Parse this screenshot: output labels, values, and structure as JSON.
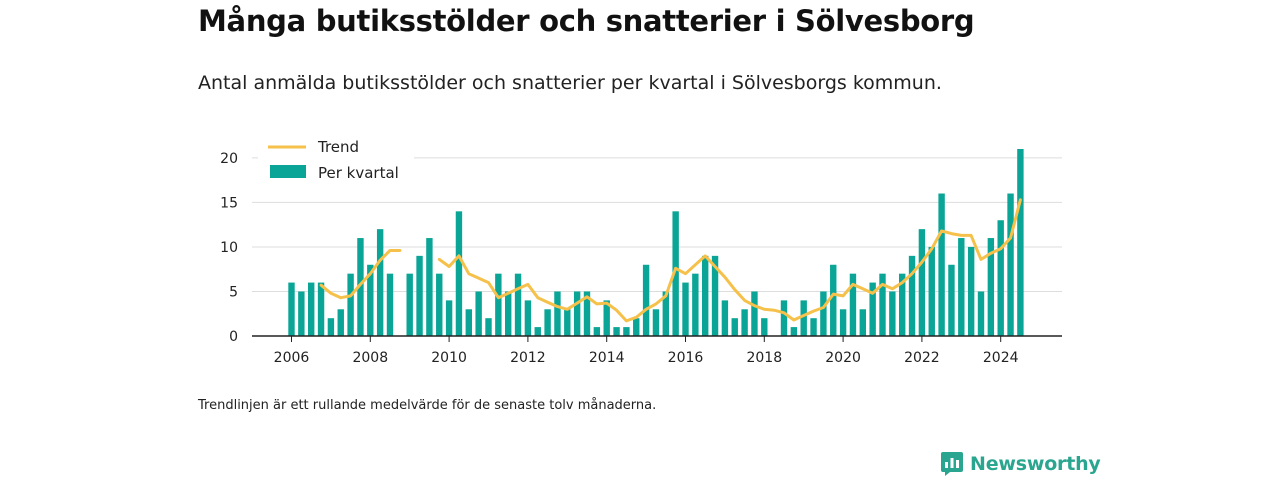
{
  "header": {
    "title": "Många butiksstölder och snatterier i Sölvesborg",
    "subtitle": "Antal anmälda butiksstölder och snatterier per kvartal i Sölvesborgs kommun."
  },
  "footer": {
    "note": "Trendlinjen är ett rullande medelvärde för de senaste tolv månaderna.",
    "brand": "Newsworthy",
    "brand_icon": "bar-chart-logo-icon"
  },
  "colors": {
    "bar": "#0aa596",
    "trend": "#f6c14b",
    "grid": "#dddddd",
    "axis": "#222222",
    "brand": "#2aa58f"
  },
  "chart_data": {
    "type": "bar",
    "x_unit": "year (quarters as decimal years)",
    "x_ticks": [
      2006,
      2008,
      2010,
      2012,
      2014,
      2016,
      2018,
      2020,
      2022,
      2024
    ],
    "xlim": [
      2005.5,
      2025.4
    ],
    "ylim": [
      0,
      21
    ],
    "y_ticks": [
      0,
      5,
      10,
      15,
      20
    ],
    "grid": true,
    "legend_placement": "top-left",
    "series": [
      {
        "name": "Per kvartal",
        "type": "bar",
        "data": [
          {
            "x": 2006.0,
            "y": 6
          },
          {
            "x": 2006.25,
            "y": 5
          },
          {
            "x": 2006.5,
            "y": 6
          },
          {
            "x": 2006.75,
            "y": 6
          },
          {
            "x": 2007.0,
            "y": 2
          },
          {
            "x": 2007.25,
            "y": 3
          },
          {
            "x": 2007.5,
            "y": 7
          },
          {
            "x": 2007.75,
            "y": 11
          },
          {
            "x": 2008.0,
            "y": 8
          },
          {
            "x": 2008.25,
            "y": 12
          },
          {
            "x": 2008.5,
            "y": 7
          },
          {
            "x": 2009.0,
            "y": 7
          },
          {
            "x": 2009.25,
            "y": 9
          },
          {
            "x": 2009.5,
            "y": 11
          },
          {
            "x": 2009.75,
            "y": 7
          },
          {
            "x": 2010.0,
            "y": 4
          },
          {
            "x": 2010.25,
            "y": 14
          },
          {
            "x": 2010.5,
            "y": 3
          },
          {
            "x": 2010.75,
            "y": 5
          },
          {
            "x": 2011.0,
            "y": 2
          },
          {
            "x": 2011.25,
            "y": 7
          },
          {
            "x": 2011.5,
            "y": 5
          },
          {
            "x": 2011.75,
            "y": 7
          },
          {
            "x": 2012.0,
            "y": 4
          },
          {
            "x": 2012.25,
            "y": 1
          },
          {
            "x": 2012.5,
            "y": 3
          },
          {
            "x": 2012.75,
            "y": 5
          },
          {
            "x": 2013.0,
            "y": 3
          },
          {
            "x": 2013.25,
            "y": 5
          },
          {
            "x": 2013.5,
            "y": 5
          },
          {
            "x": 2013.75,
            "y": 1
          },
          {
            "x": 2014.0,
            "y": 4
          },
          {
            "x": 2014.25,
            "y": 1
          },
          {
            "x": 2014.5,
            "y": 1
          },
          {
            "x": 2014.75,
            "y": 2
          },
          {
            "x": 2015.0,
            "y": 8
          },
          {
            "x": 2015.25,
            "y": 3
          },
          {
            "x": 2015.5,
            "y": 5
          },
          {
            "x": 2015.75,
            "y": 14
          },
          {
            "x": 2016.0,
            "y": 6
          },
          {
            "x": 2016.25,
            "y": 7
          },
          {
            "x": 2016.5,
            "y": 9
          },
          {
            "x": 2016.75,
            "y": 9
          },
          {
            "x": 2017.0,
            "y": 4
          },
          {
            "x": 2017.25,
            "y": 2
          },
          {
            "x": 2017.5,
            "y": 3
          },
          {
            "x": 2017.75,
            "y": 5
          },
          {
            "x": 2018.0,
            "y": 2
          },
          {
            "x": 2018.5,
            "y": 4
          },
          {
            "x": 2018.75,
            "y": 1
          },
          {
            "x": 2019.0,
            "y": 4
          },
          {
            "x": 2019.25,
            "y": 2
          },
          {
            "x": 2019.5,
            "y": 5
          },
          {
            "x": 2019.75,
            "y": 8
          },
          {
            "x": 2020.0,
            "y": 3
          },
          {
            "x": 2020.25,
            "y": 7
          },
          {
            "x": 2020.5,
            "y": 3
          },
          {
            "x": 2020.75,
            "y": 6
          },
          {
            "x": 2021.0,
            "y": 7
          },
          {
            "x": 2021.25,
            "y": 5
          },
          {
            "x": 2021.5,
            "y": 7
          },
          {
            "x": 2021.75,
            "y": 9
          },
          {
            "x": 2022.0,
            "y": 12
          },
          {
            "x": 2022.25,
            "y": 10
          },
          {
            "x": 2022.5,
            "y": 16
          },
          {
            "x": 2022.75,
            "y": 8
          },
          {
            "x": 2023.0,
            "y": 11
          },
          {
            "x": 2023.25,
            "y": 10
          },
          {
            "x": 2023.5,
            "y": 5
          },
          {
            "x": 2023.75,
            "y": 11
          },
          {
            "x": 2024.0,
            "y": 13
          },
          {
            "x": 2024.25,
            "y": 16
          },
          {
            "x": 2024.5,
            "y": 21
          }
        ]
      },
      {
        "name": "Trend",
        "type": "line",
        "segments": [
          [
            {
              "x": 2006.75,
              "y": 5.7
            },
            {
              "x": 2007.0,
              "y": 4.8
            },
            {
              "x": 2007.25,
              "y": 4.3
            },
            {
              "x": 2007.5,
              "y": 4.5
            },
            {
              "x": 2007.75,
              "y": 5.8
            },
            {
              "x": 2008.0,
              "y": 7.0
            },
            {
              "x": 2008.25,
              "y": 8.5
            },
            {
              "x": 2008.5,
              "y": 9.6
            },
            {
              "x": 2008.75,
              "y": 9.6
            }
          ],
          [
            {
              "x": 2009.75,
              "y": 8.6
            },
            {
              "x": 2010.0,
              "y": 7.8
            },
            {
              "x": 2010.25,
              "y": 9.0
            },
            {
              "x": 2010.5,
              "y": 7.0
            },
            {
              "x": 2010.75,
              "y": 6.5
            },
            {
              "x": 2011.0,
              "y": 6.0
            },
            {
              "x": 2011.25,
              "y": 4.3
            },
            {
              "x": 2011.5,
              "y": 4.8
            },
            {
              "x": 2011.75,
              "y": 5.3
            },
            {
              "x": 2012.0,
              "y": 5.8
            },
            {
              "x": 2012.25,
              "y": 4.3
            },
            {
              "x": 2012.5,
              "y": 3.8
            },
            {
              "x": 2012.75,
              "y": 3.3
            },
            {
              "x": 2013.0,
              "y": 3.0
            },
            {
              "x": 2013.25,
              "y": 3.7
            },
            {
              "x": 2013.5,
              "y": 4.4
            },
            {
              "x": 2013.75,
              "y": 3.6
            },
            {
              "x": 2014.0,
              "y": 3.7
            },
            {
              "x": 2014.25,
              "y": 2.9
            },
            {
              "x": 2014.5,
              "y": 1.7
            },
            {
              "x": 2014.75,
              "y": 2.1
            },
            {
              "x": 2015.0,
              "y": 3.0
            },
            {
              "x": 2015.25,
              "y": 3.6
            },
            {
              "x": 2015.5,
              "y": 4.5
            },
            {
              "x": 2015.75,
              "y": 7.6
            },
            {
              "x": 2016.0,
              "y": 7.0
            },
            {
              "x": 2016.25,
              "y": 8.0
            },
            {
              "x": 2016.5,
              "y": 9.0
            },
            {
              "x": 2016.75,
              "y": 7.8
            },
            {
              "x": 2017.0,
              "y": 6.6
            },
            {
              "x": 2017.25,
              "y": 5.2
            },
            {
              "x": 2017.5,
              "y": 4.0
            },
            {
              "x": 2017.75,
              "y": 3.4
            },
            {
              "x": 2018.0,
              "y": 3.0
            },
            {
              "x": 2018.25,
              "y": 2.9
            },
            {
              "x": 2018.5,
              "y": 2.6
            },
            {
              "x": 2018.75,
              "y": 1.8
            },
            {
              "x": 2019.0,
              "y": 2.3
            },
            {
              "x": 2019.25,
              "y": 2.8
            },
            {
              "x": 2019.5,
              "y": 3.2
            },
            {
              "x": 2019.75,
              "y": 4.7
            },
            {
              "x": 2020.0,
              "y": 4.5
            },
            {
              "x": 2020.25,
              "y": 5.8
            },
            {
              "x": 2020.5,
              "y": 5.3
            },
            {
              "x": 2020.75,
              "y": 4.8
            },
            {
              "x": 2021.0,
              "y": 5.8
            },
            {
              "x": 2021.25,
              "y": 5.3
            },
            {
              "x": 2021.5,
              "y": 6.0
            },
            {
              "x": 2021.75,
              "y": 7.0
            },
            {
              "x": 2022.0,
              "y": 8.3
            },
            {
              "x": 2022.25,
              "y": 9.8
            },
            {
              "x": 2022.5,
              "y": 11.8
            },
            {
              "x": 2022.75,
              "y": 11.5
            },
            {
              "x": 2023.0,
              "y": 11.3
            },
            {
              "x": 2023.25,
              "y": 11.3
            },
            {
              "x": 2023.5,
              "y": 8.6
            },
            {
              "x": 2023.75,
              "y": 9.3
            },
            {
              "x": 2024.0,
              "y": 9.8
            },
            {
              "x": 2024.25,
              "y": 11.0
            },
            {
              "x": 2024.5,
              "y": 15.3
            }
          ]
        ]
      }
    ]
  }
}
